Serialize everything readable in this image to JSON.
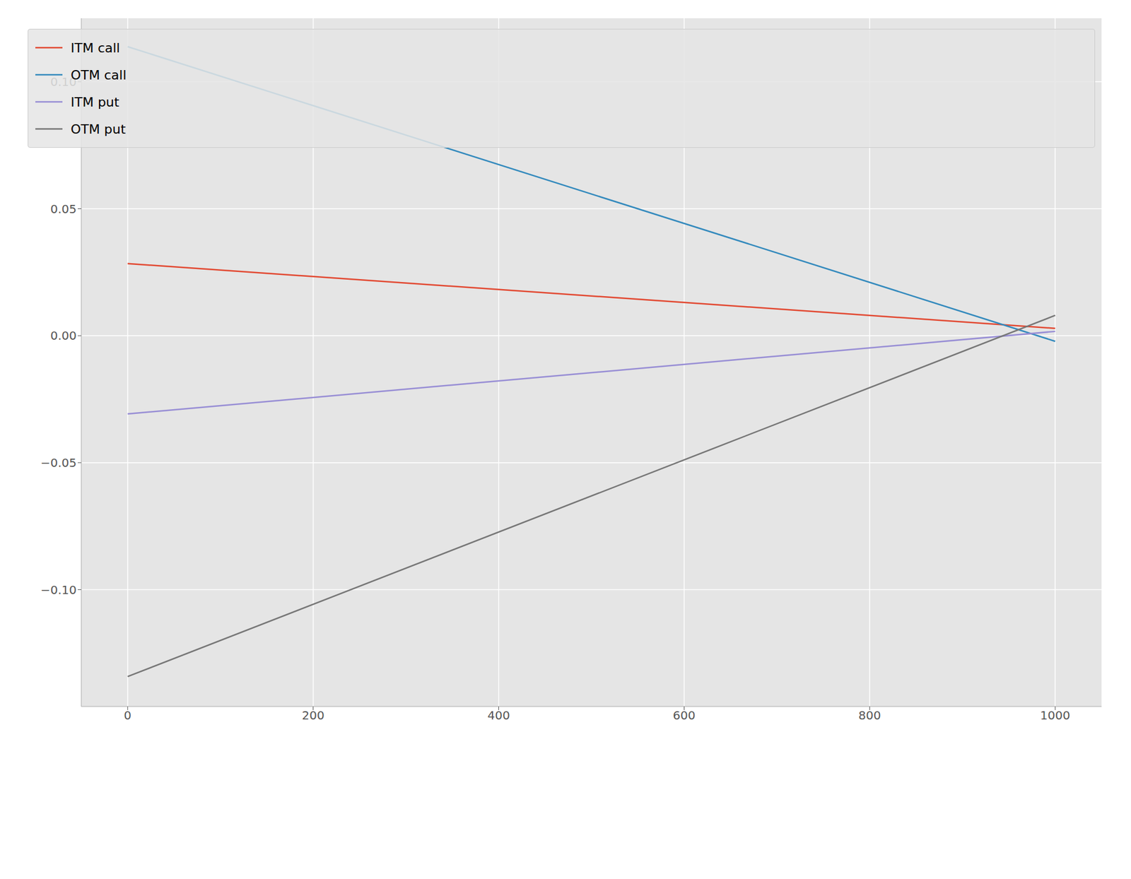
{
  "chart_data": {
    "type": "line",
    "xlim": [
      -50,
      1050
    ],
    "ylim": [
      -0.146,
      0.125
    ],
    "xticks": [
      0,
      200,
      400,
      600,
      800,
      1000
    ],
    "yticks": [
      {
        "value": -0.1,
        "label": "−0.10"
      },
      {
        "value": -0.05,
        "label": "−0.05"
      },
      {
        "value": 0,
        "label": "0.00"
      },
      0.05,
      {
        "value": 0.1,
        "label": "0.10"
      }
    ],
    "grid": true,
    "legend": "upper right",
    "series": [
      {
        "name": "ITM call",
        "color": "#E24A33",
        "x": [
          0,
          1000
        ],
        "values": [
          0.0284,
          0.0029
        ]
      },
      {
        "name": "OTM call",
        "color": "#348ABD",
        "x": [
          0,
          1000
        ],
        "values": [
          0.1138,
          -0.0022
        ]
      },
      {
        "name": "ITM put",
        "color": "#988ED5",
        "x": [
          0,
          1000
        ],
        "values": [
          -0.0308,
          0.0017
        ]
      },
      {
        "name": "OTM put",
        "color": "#777777",
        "x": [
          0,
          1000
        ],
        "values": [
          -0.1342,
          0.008
        ]
      }
    ]
  }
}
